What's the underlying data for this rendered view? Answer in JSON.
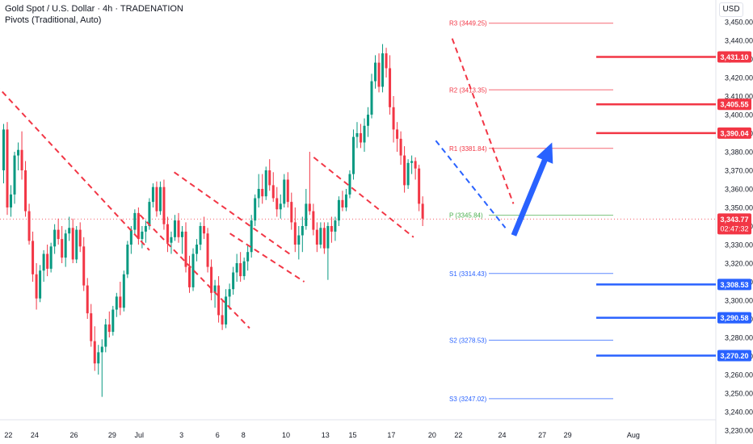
{
  "header": {
    "title": "Gold Spot / U.S. Dollar · 4h · TRADENATION",
    "subtitle": "Pivots (Traditional, Auto)"
  },
  "currency": "USD",
  "chart_data": {
    "type": "candlestick",
    "title": "Gold Spot / U.S. Dollar · 4h · TRADENATION",
    "ylim": [
      3225,
      3462
    ],
    "y_ticks": [
      3230,
      3240,
      3250,
      3260,
      3270,
      3280,
      3290,
      3300,
      3310,
      3320,
      3330,
      3340,
      3350,
      3360,
      3370,
      3380,
      3390,
      3400,
      3410,
      3420,
      3430,
      3440,
      3450
    ],
    "x_ticks": [
      {
        "label": "22",
        "i": 1.3
      },
      {
        "label": "24",
        "i": 8.5
      },
      {
        "label": "26",
        "i": 19.3
      },
      {
        "label": "29",
        "i": 29.8
      },
      {
        "label": "Jul",
        "i": 37.2
      },
      {
        "label": "3",
        "i": 48.8
      },
      {
        "label": "6",
        "i": 58.7
      },
      {
        "label": "8",
        "i": 65.8
      },
      {
        "label": "10",
        "i": 77.5
      },
      {
        "label": "13",
        "i": 88.3
      },
      {
        "label": "15",
        "i": 95.8
      },
      {
        "label": "17",
        "i": 106.4
      },
      {
        "label": "20",
        "i": 117.6
      },
      {
        "label": "22",
        "i": 124.8
      },
      {
        "label": "24",
        "i": 136.8
      },
      {
        "label": "27",
        "i": 147.8
      },
      {
        "label": "29",
        "i": 154.8
      },
      {
        "label": "Aug",
        "i": 172.8
      }
    ],
    "colors": {
      "up": "#089981",
      "down": "#f23645",
      "pivot_r": "#f23645",
      "pivot_s": "#2962ff",
      "pivot_p": "#4caf50"
    },
    "candles": [
      [
        3370,
        3395,
        3363,
        3392
      ],
      [
        3392,
        3396,
        3346,
        3350
      ],
      [
        3350,
        3362,
        3345,
        3357
      ],
      [
        3357,
        3380,
        3352,
        3378
      ],
      [
        3378,
        3385,
        3370,
        3381
      ],
      [
        3381,
        3391,
        3365,
        3370
      ],
      [
        3370,
        3375,
        3345,
        3348
      ],
      [
        3348,
        3352,
        3330,
        3332
      ],
      [
        3332,
        3337,
        3310,
        3314
      ],
      [
        3314,
        3320,
        3295,
        3301
      ],
      [
        3301,
        3319,
        3299,
        3316
      ],
      [
        3316,
        3327,
        3310,
        3325
      ],
      [
        3325,
        3330,
        3313,
        3317
      ],
      [
        3317,
        3331,
        3315,
        3329
      ],
      [
        3329,
        3341,
        3325,
        3338
      ],
      [
        3338,
        3344,
        3330,
        3333
      ],
      [
        3333,
        3340,
        3320,
        3323
      ],
      [
        3323,
        3338,
        3318,
        3336
      ],
      [
        3336,
        3345,
        3332,
        3339
      ],
      [
        3339,
        3344,
        3320,
        3322
      ],
      [
        3322,
        3340,
        3320,
        3338
      ],
      [
        3338,
        3342,
        3326,
        3329
      ],
      [
        3329,
        3334,
        3305,
        3308
      ],
      [
        3308,
        3312,
        3290,
        3293
      ],
      [
        3293,
        3298,
        3275,
        3278
      ],
      [
        3278,
        3286,
        3262,
        3266
      ],
      [
        3266,
        3276,
        3260,
        3272
      ],
      [
        3272,
        3279,
        3248,
        3275
      ],
      [
        3275,
        3290,
        3272,
        3287
      ],
      [
        3287,
        3294,
        3280,
        3283
      ],
      [
        3283,
        3297,
        3281,
        3295
      ],
      [
        3295,
        3304,
        3291,
        3302
      ],
      [
        3302,
        3310,
        3292,
        3296
      ],
      [
        3296,
        3316,
        3294,
        3314
      ],
      [
        3314,
        3332,
        3312,
        3330
      ],
      [
        3330,
        3340,
        3325,
        3338
      ],
      [
        3338,
        3349,
        3335,
        3347
      ],
      [
        3347,
        3350,
        3330,
        3333
      ],
      [
        3333,
        3340,
        3328,
        3337
      ],
      [
        3337,
        3343,
        3331,
        3340
      ],
      [
        3340,
        3355,
        3338,
        3353
      ],
      [
        3353,
        3363,
        3350,
        3361
      ],
      [
        3361,
        3364,
        3345,
        3348
      ],
      [
        3348,
        3364,
        3346,
        3361
      ],
      [
        3361,
        3365,
        3338,
        3341
      ],
      [
        3341,
        3345,
        3326,
        3331
      ],
      [
        3331,
        3337,
        3325,
        3334
      ],
      [
        3334,
        3346,
        3332,
        3343
      ],
      [
        3343,
        3347,
        3331,
        3334
      ],
      [
        3334,
        3340,
        3325,
        3337
      ],
      [
        3337,
        3342,
        3315,
        3318
      ],
      [
        3318,
        3324,
        3304,
        3307
      ],
      [
        3307,
        3328,
        3305,
        3325
      ],
      [
        3325,
        3333,
        3321,
        3330
      ],
      [
        3330,
        3342,
        3327,
        3340
      ],
      [
        3340,
        3345,
        3333,
        3336
      ],
      [
        3336,
        3339,
        3315,
        3318
      ],
      [
        3318,
        3322,
        3300,
        3304
      ],
      [
        3304,
        3311,
        3296,
        3308
      ],
      [
        3308,
        3313,
        3288,
        3292
      ],
      [
        3292,
        3300,
        3284,
        3287
      ],
      [
        3287,
        3306,
        3285,
        3302
      ],
      [
        3302,
        3309,
        3295,
        3306
      ],
      [
        3306,
        3318,
        3303,
        3315
      ],
      [
        3315,
        3325,
        3310,
        3320
      ],
      [
        3320,
        3326,
        3310,
        3313
      ],
      [
        3313,
        3323,
        3311,
        3321
      ],
      [
        3321,
        3330,
        3316,
        3326
      ],
      [
        3326,
        3346,
        3323,
        3343
      ],
      [
        3343,
        3357,
        3340,
        3355
      ],
      [
        3355,
        3368,
        3350,
        3360
      ],
      [
        3360,
        3368,
        3352,
        3356
      ],
      [
        3356,
        3372,
        3354,
        3370
      ],
      [
        3370,
        3376,
        3359,
        3362
      ],
      [
        3362,
        3369,
        3353,
        3355
      ],
      [
        3355,
        3361,
        3345,
        3349
      ],
      [
        3349,
        3357,
        3344,
        3352
      ],
      [
        3352,
        3368,
        3350,
        3365
      ],
      [
        3365,
        3369,
        3350,
        3353
      ],
      [
        3353,
        3358,
        3338,
        3342
      ],
      [
        3342,
        3350,
        3326,
        3330
      ],
      [
        3330,
        3340,
        3322,
        3335
      ],
      [
        3335,
        3345,
        3326,
        3340
      ],
      [
        3340,
        3360,
        3338,
        3352
      ],
      [
        3352,
        3380,
        3346,
        3348
      ],
      [
        3348,
        3352,
        3335,
        3338
      ],
      [
        3338,
        3342,
        3326,
        3330
      ],
      [
        3330,
        3342,
        3328,
        3339
      ],
      [
        3339,
        3342,
        3325,
        3328
      ],
      [
        3328,
        3342,
        3311,
        3340
      ],
      [
        3340,
        3345,
        3331,
        3337
      ],
      [
        3337,
        3345,
        3332,
        3343
      ],
      [
        3343,
        3356,
        3340,
        3354
      ],
      [
        3354,
        3359,
        3348,
        3350
      ],
      [
        3350,
        3360,
        3348,
        3357
      ],
      [
        3357,
        3370,
        3355,
        3368
      ],
      [
        3368,
        3392,
        3365,
        3388
      ],
      [
        3388,
        3396,
        3382,
        3390
      ],
      [
        3390,
        3395,
        3382,
        3385
      ],
      [
        3385,
        3398,
        3380,
        3394
      ],
      [
        3394,
        3404,
        3388,
        3400
      ],
      [
        3400,
        3422,
        3398,
        3418
      ],
      [
        3418,
        3432,
        3414,
        3428
      ],
      [
        3428,
        3433,
        3412,
        3415
      ],
      [
        3415,
        3438,
        3412,
        3433
      ],
      [
        3433,
        3436,
        3420,
        3425
      ],
      [
        3425,
        3432,
        3400,
        3404
      ],
      [
        3404,
        3410,
        3385,
        3392
      ],
      [
        3392,
        3396,
        3380,
        3387
      ],
      [
        3387,
        3391,
        3373,
        3378
      ],
      [
        3378,
        3383,
        3358,
        3362
      ],
      [
        3362,
        3376,
        3360,
        3374
      ],
      [
        3374,
        3378,
        3368,
        3375
      ],
      [
        3375,
        3377,
        3365,
        3371
      ],
      [
        3371,
        3373,
        3348,
        3352
      ],
      [
        3352,
        3356,
        3340,
        3344
      ]
    ],
    "pivots": [
      {
        "label": "R3 (3449.25)",
        "value": 3449.25,
        "kind": "r"
      },
      {
        "label": "R2 (3413.35)",
        "value": 3413.35,
        "kind": "r"
      },
      {
        "label": "R1 (3381.84)",
        "value": 3381.84,
        "kind": "r"
      },
      {
        "label": "P (3345.84)",
        "value": 3345.84,
        "kind": "p"
      },
      {
        "label": "S1 (3314.43)",
        "value": 3314.43,
        "kind": "s"
      },
      {
        "label": "S2 (3278.53)",
        "value": 3278.53,
        "kind": "s"
      },
      {
        "label": "S3 (3247.02)",
        "value": 3247.02,
        "kind": "s"
      }
    ],
    "levels": [
      {
        "label": "3,431.10",
        "value": 3431.1,
        "color": "#f23645"
      },
      {
        "label": "3,405.55",
        "value": 3405.55,
        "color": "#f23645"
      },
      {
        "label": "3,390.04",
        "value": 3390.04,
        "color": "#f23645"
      },
      {
        "label": "3,308.53",
        "value": 3308.53,
        "color": "#2962ff"
      },
      {
        "label": "3,290.58",
        "value": 3290.58,
        "color": "#2962ff"
      },
      {
        "label": "3,270.20",
        "value": 3270.2,
        "color": "#2962ff"
      }
    ],
    "last_price": {
      "label": "3,343.77",
      "value": 3343.77,
      "countdown": "02:47:32",
      "color": "#f23645"
    },
    "trendlines": [
      {
        "color": "#f23645",
        "points": [
          [
            -4,
            3420
          ],
          [
            40,
            3327
          ]
        ]
      },
      {
        "color": "#f23645",
        "points": [
          [
            37.4,
            3346
          ],
          [
            67.5,
            3285
          ]
        ]
      },
      {
        "color": "#f23645",
        "points": [
          [
            46.8,
            3369
          ],
          [
            79.2,
            3324
          ]
        ]
      },
      {
        "color": "#f23645",
        "points": [
          [
            62.1,
            3336
          ],
          [
            82.5,
            3310
          ]
        ]
      },
      {
        "color": "#f23645",
        "points": [
          [
            85.1,
            3377
          ],
          [
            112.5,
            3334
          ]
        ]
      },
      {
        "color": "#f23645",
        "points": [
          [
            123.1,
            3441
          ],
          [
            139.9,
            3352
          ]
        ]
      },
      {
        "color": "#2962ff",
        "points": [
          [
            118.6,
            3386
          ],
          [
            137.7,
            3339
          ]
        ]
      }
    ],
    "arrow": {
      "color": "#2962ff",
      "from": [
        140,
        3335
      ],
      "to": [
        150.5,
        3385
      ]
    }
  }
}
